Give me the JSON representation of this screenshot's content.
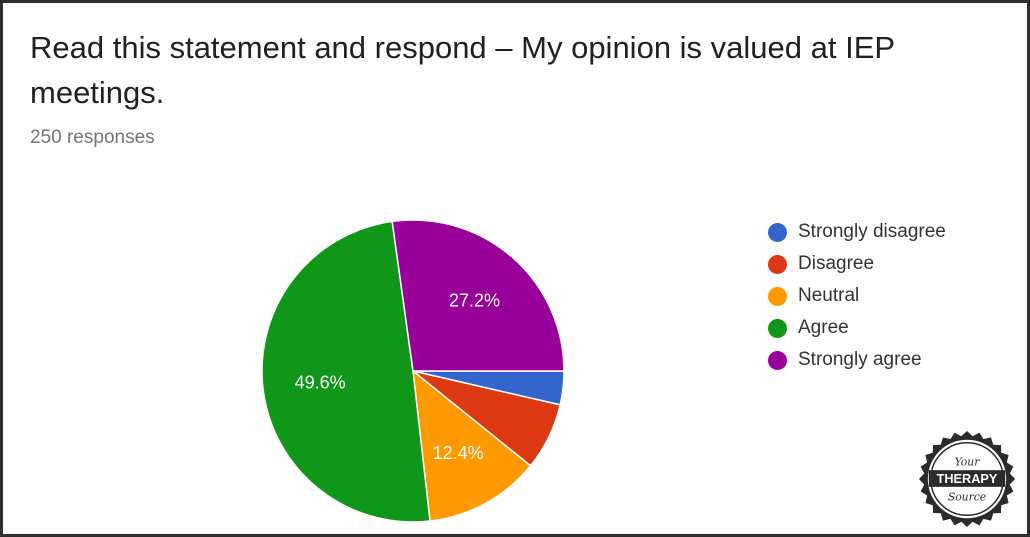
{
  "header": {
    "title": "Read this statement and respond – My opinion is valued at IEP meetings.",
    "responses": "250 responses"
  },
  "chart_data": {
    "type": "pie",
    "categories": [
      "Strongly disagree",
      "Disagree",
      "Neutral",
      "Agree",
      "Strongly agree"
    ],
    "values": [
      3.6,
      7.2,
      12.4,
      49.6,
      27.2
    ],
    "slice_labels": [
      "",
      "",
      "12.4%",
      "49.6%",
      "27.2%"
    ],
    "colors": [
      "#3366cc",
      "#dc3912",
      "#ff9900",
      "#109618",
      "#990099"
    ],
    "legend_position": "right"
  },
  "badge": {
    "line1": "Your",
    "line2": "THERAPY",
    "line3": "Source"
  }
}
